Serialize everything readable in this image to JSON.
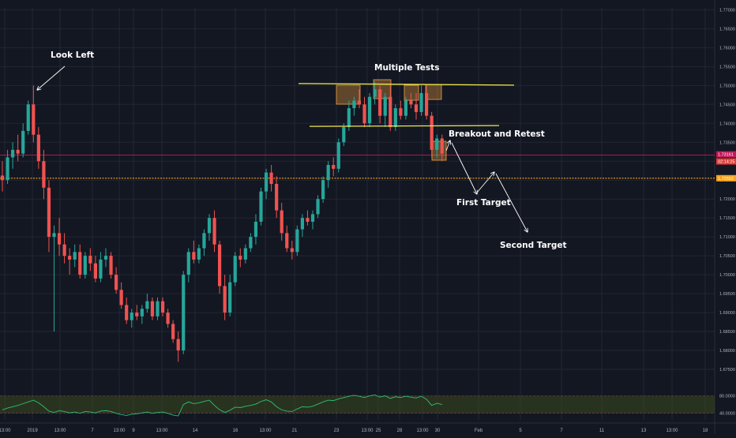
{
  "theme": {
    "background": "#131722",
    "grid": "#232735",
    "bull": "#26a69a",
    "bear": "#ef5350",
    "yellow_line": "#f2e94e",
    "orange_box": "#f0a040",
    "orange_level": "#f7a21b",
    "red_level": "#c2185b",
    "rsi_line": "#2fbf71",
    "rsi_band": "#3b4a1e"
  },
  "chart_data": [
    {
      "type": "candlestick",
      "price_ticks": [
        "1.77000",
        "1.76500",
        "1.76000",
        "1.75500",
        "1.75000",
        "1.74500",
        "1.74000",
        "1.73500",
        "1.73000",
        "1.72500",
        "1.72000",
        "1.71500",
        "1.71000",
        "1.70500",
        "1.70000",
        "1.69500",
        "1.69000",
        "1.68500",
        "1.68000",
        "1.67500"
      ],
      "ylim": [
        1.6725,
        1.7705
      ],
      "time_ticks": [
        "13:00",
        "2019",
        "13:00",
        "7",
        "13:00",
        "9",
        "13:00",
        "14",
        "16",
        "13:00",
        "21",
        "23",
        "13:00",
        "25",
        "28",
        "13:00",
        "30",
        "Feb",
        "5",
        "7",
        "11",
        "13",
        "13:00",
        "18"
      ],
      "current_price_label": "1.73161",
      "countdown_label": "02:14:25",
      "current_price": 1.7316,
      "support_price_label": "1.72552",
      "support_price": 1.7255,
      "resistance_top_level": 1.7503,
      "breakout_level": 1.7392,
      "candles": [
        [
          1.7262,
          1.73,
          1.722,
          1.725
        ],
        [
          1.725,
          1.733,
          1.724,
          1.731
        ],
        [
          1.731,
          1.735,
          1.728,
          1.733
        ],
        [
          1.733,
          1.737,
          1.73,
          1.732
        ],
        [
          1.732,
          1.74,
          1.731,
          1.738
        ],
        [
          1.738,
          1.746,
          1.737,
          1.745
        ],
        [
          1.745,
          1.75,
          1.735,
          1.737
        ],
        [
          1.737,
          1.739,
          1.728,
          1.73
        ],
        [
          1.73,
          1.733,
          1.72,
          1.723
        ],
        [
          1.723,
          1.725,
          1.706,
          1.71
        ],
        [
          1.71,
          1.713,
          1.685,
          1.711
        ],
        [
          1.711,
          1.715,
          1.705,
          1.708
        ],
        [
          1.708,
          1.711,
          1.703,
          1.705
        ],
        [
          1.705,
          1.707,
          1.7,
          1.704
        ],
        [
          1.704,
          1.708,
          1.702,
          1.706
        ],
        [
          1.706,
          1.708,
          1.699,
          1.7
        ],
        [
          1.7,
          1.706,
          1.699,
          1.705
        ],
        [
          1.705,
          1.707,
          1.701,
          1.703
        ],
        [
          1.703,
          1.705,
          1.698,
          1.699
        ],
        [
          1.699,
          1.706,
          1.698,
          1.704
        ],
        [
          1.704,
          1.707,
          1.702,
          1.705
        ],
        [
          1.705,
          1.706,
          1.699,
          1.7
        ],
        [
          1.7,
          1.702,
          1.695,
          1.696
        ],
        [
          1.696,
          1.698,
          1.691,
          1.692
        ],
        [
          1.692,
          1.694,
          1.687,
          1.688
        ],
        [
          1.688,
          1.691,
          1.686,
          1.69
        ],
        [
          1.69,
          1.692,
          1.688,
          1.689
        ],
        [
          1.689,
          1.692,
          1.687,
          1.691
        ],
        [
          1.691,
          1.695,
          1.69,
          1.693
        ],
        [
          1.693,
          1.694,
          1.688,
          1.689
        ],
        [
          1.689,
          1.694,
          1.688,
          1.693
        ],
        [
          1.693,
          1.694,
          1.689,
          1.69
        ],
        [
          1.69,
          1.691,
          1.686,
          1.687
        ],
        [
          1.687,
          1.688,
          1.682,
          1.683
        ],
        [
          1.683,
          1.685,
          1.677,
          1.68
        ],
        [
          1.68,
          1.701,
          1.679,
          1.7
        ],
        [
          1.7,
          1.707,
          1.698,
          1.706
        ],
        [
          1.706,
          1.709,
          1.703,
          1.704
        ],
        [
          1.704,
          1.708,
          1.703,
          1.707
        ],
        [
          1.707,
          1.712,
          1.705,
          1.711
        ],
        [
          1.711,
          1.716,
          1.709,
          1.715
        ],
        [
          1.715,
          1.717,
          1.706,
          1.708
        ],
        [
          1.708,
          1.709,
          1.695,
          1.697
        ],
        [
          1.697,
          1.7,
          1.688,
          1.69
        ],
        [
          1.69,
          1.7,
          1.689,
          1.698
        ],
        [
          1.698,
          1.706,
          1.697,
          1.705
        ],
        [
          1.705,
          1.707,
          1.702,
          1.704
        ],
        [
          1.704,
          1.708,
          1.703,
          1.707
        ],
        [
          1.707,
          1.711,
          1.706,
          1.71
        ],
        [
          1.71,
          1.716,
          1.708,
          1.714
        ],
        [
          1.714,
          1.723,
          1.713,
          1.722
        ],
        [
          1.722,
          1.728,
          1.72,
          1.727
        ],
        [
          1.727,
          1.729,
          1.722,
          1.724
        ],
        [
          1.724,
          1.726,
          1.715,
          1.717
        ],
        [
          1.717,
          1.719,
          1.709,
          1.711
        ],
        [
          1.711,
          1.713,
          1.706,
          1.707
        ],
        [
          1.707,
          1.709,
          1.704,
          1.706
        ],
        [
          1.706,
          1.713,
          1.705,
          1.712
        ],
        [
          1.712,
          1.716,
          1.71,
          1.715
        ],
        [
          1.715,
          1.717,
          1.713,
          1.714
        ],
        [
          1.714,
          1.717,
          1.712,
          1.716
        ],
        [
          1.716,
          1.721,
          1.715,
          1.72
        ],
        [
          1.72,
          1.726,
          1.719,
          1.725
        ],
        [
          1.725,
          1.73,
          1.723,
          1.729
        ],
        [
          1.729,
          1.731,
          1.726,
          1.728
        ],
        [
          1.728,
          1.736,
          1.727,
          1.735
        ],
        [
          1.735,
          1.74,
          1.734,
          1.739
        ],
        [
          1.739,
          1.746,
          1.738,
          1.744
        ],
        [
          1.744,
          1.747,
          1.742,
          1.746
        ],
        [
          1.746,
          1.749,
          1.744,
          1.745
        ],
        [
          1.745,
          1.747,
          1.739,
          1.74
        ],
        [
          1.74,
          1.748,
          1.739,
          1.747
        ],
        [
          1.747,
          1.751,
          1.745,
          1.749
        ],
        [
          1.749,
          1.75,
          1.74,
          1.742
        ],
        [
          1.742,
          1.748,
          1.739,
          1.747
        ],
        [
          1.747,
          1.75,
          1.738,
          1.739
        ],
        [
          1.739,
          1.745,
          1.738,
          1.744
        ],
        [
          1.744,
          1.746,
          1.741,
          1.742
        ],
        [
          1.742,
          1.747,
          1.741,
          1.746
        ],
        [
          1.746,
          1.748,
          1.744,
          1.745
        ],
        [
          1.745,
          1.748,
          1.741,
          1.743
        ],
        [
          1.743,
          1.75,
          1.742,
          1.748
        ],
        [
          1.748,
          1.75,
          1.741,
          1.742
        ],
        [
          1.742,
          1.743,
          1.731,
          1.733
        ],
        [
          1.733,
          1.737,
          1.731,
          1.736
        ],
        [
          1.736,
          1.737,
          1.73,
          1.732
        ]
      ],
      "rsi_ticks": [
        "80.0000",
        "40.0000"
      ],
      "rsi_upper": 80,
      "rsi_lower": 40,
      "rsi_ylim": [
        25,
        90
      ],
      "rsi": [
        48,
        52,
        55,
        58,
        62,
        66,
        70,
        64,
        55,
        45,
        42,
        46,
        44,
        41,
        43,
        40,
        44,
        43,
        41,
        45,
        46,
        44,
        40,
        37,
        35,
        38,
        39,
        41,
        43,
        40,
        42,
        43,
        40,
        36,
        34,
        60,
        66,
        62,
        64,
        67,
        70,
        58,
        48,
        42,
        47,
        54,
        53,
        56,
        58,
        61,
        67,
        71,
        66,
        55,
        48,
        45,
        44,
        50,
        55,
        54,
        56,
        61,
        66,
        70,
        69,
        73,
        76,
        79,
        81,
        79,
        76,
        80,
        82,
        77,
        80,
        74,
        78,
        76,
        79,
        77,
        75,
        79,
        72,
        58,
        63,
        60
      ]
    }
  ],
  "annotations": {
    "look_left": "Look Left",
    "multiple_tests": "Multiple Tests",
    "breakout_retest": "Breakout and Retest",
    "first_target": "First Target",
    "second_target": "Second Target"
  }
}
